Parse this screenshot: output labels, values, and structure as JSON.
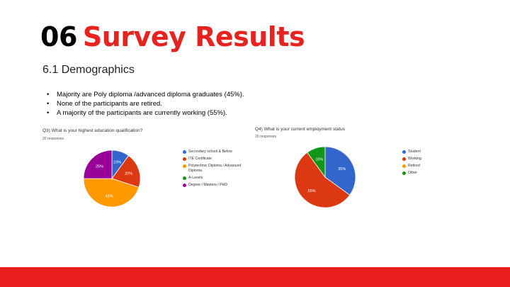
{
  "slide": {
    "title_number": "06",
    "title_text": "Survey Results",
    "subtitle": "6.1 Demographics",
    "bullets": [
      "Majority are Poly diploma /advanced diploma graduates (45%).",
      "None of the participants are retired.",
      "A majority of the participants are currently working (55%)."
    ],
    "footer_color": "#ea1c1c",
    "accent_color": "#e8221e"
  },
  "chart_data": [
    {
      "type": "pie",
      "title": "Q3) What is your highest education qualification?",
      "subtitle": "20 responses",
      "legend_position": "right",
      "categories": [
        "Secondary school & Below",
        "ITE Certificate",
        "Polytechnic Diploma / Advanced Diploma",
        "A-Levels",
        "Degree / Masters / PHD"
      ],
      "values": [
        10,
        20,
        45,
        0,
        25
      ],
      "colors": [
        "#3366cc",
        "#dc3912",
        "#ff9900",
        "#109618",
        "#990099"
      ],
      "data_labels": [
        "10%",
        "20%",
        "45%",
        "",
        "25%"
      ]
    },
    {
      "type": "pie",
      "title": "Q4) What is your current employment status",
      "subtitle": "20 responses",
      "legend_position": "right",
      "categories": [
        "Student",
        "Working",
        "Retired",
        "Other"
      ],
      "values": [
        35,
        55,
        0,
        10
      ],
      "colors": [
        "#3366cc",
        "#dc3912",
        "#ff9900",
        "#109618"
      ],
      "data_labels": [
        "35%",
        "55%",
        "",
        "10%"
      ]
    }
  ]
}
